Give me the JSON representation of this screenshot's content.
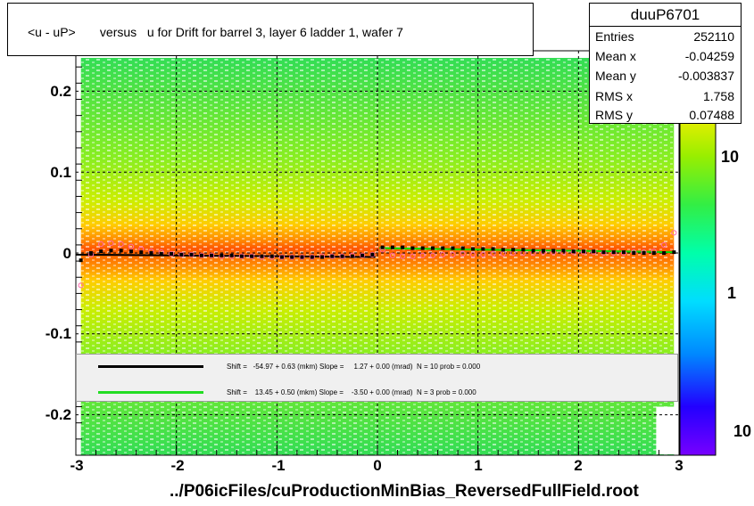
{
  "chart_data": {
    "type": "heatmap",
    "title": "<u - uP>       versus   u for Drift for barrel 3, layer 6 ladder 1, wafer 7",
    "xlabel": "../P06icFiles/cuProductionMinBias_ReversedFullField.root",
    "ylabel": "",
    "xlim": [
      -3,
      3
    ],
    "ylim": [
      -0.25,
      0.25
    ],
    "x_ticks": [
      "-3",
      "-2",
      "-1",
      "0",
      "1",
      "2",
      "3"
    ],
    "y_ticks": [
      "-0.2",
      "-0.1",
      "0",
      "0.1",
      "0.2"
    ],
    "z_ticks": [
      "10",
      "1",
      "10"
    ],
    "grid": true,
    "colors": {
      "frame": "#000000",
      "profile_black": "#000000",
      "profile_pink": "#ff66aa",
      "fit_green": "#00dd00",
      "legend_bg": "#f0f0f0"
    },
    "profile": {
      "x": [
        -2.95,
        -2.85,
        -2.75,
        -2.65,
        -2.55,
        -2.45,
        -2.35,
        -2.25,
        -2.15,
        -2.05,
        -1.95,
        -1.85,
        -1.75,
        -1.65,
        -1.55,
        -1.45,
        -1.35,
        -1.25,
        -1.15,
        -1.05,
        -0.95,
        -0.85,
        -0.75,
        -0.65,
        -0.55,
        -0.45,
        -0.35,
        -0.25,
        -0.15,
        -0.05,
        0.05,
        0.15,
        0.25,
        0.35,
        0.45,
        0.55,
        0.65,
        0.75,
        0.85,
        0.95,
        1.05,
        1.15,
        1.25,
        1.35,
        1.45,
        1.55,
        1.65,
        1.75,
        1.85,
        1.95,
        2.05,
        2.15,
        2.25,
        2.35,
        2.45,
        2.55,
        2.65,
        2.75,
        2.85,
        2.95
      ],
      "y": [
        -0.009,
        0.0,
        0.002,
        0.003,
        0.003,
        0.002,
        0.001,
        0.0,
        -0.001,
        -0.001,
        -0.002,
        -0.002,
        -0.003,
        -0.003,
        -0.003,
        -0.003,
        -0.004,
        -0.004,
        -0.004,
        -0.004,
        -0.005,
        -0.005,
        -0.005,
        -0.005,
        -0.005,
        -0.004,
        -0.004,
        -0.004,
        -0.003,
        -0.002,
        0.007,
        0.007,
        0.007,
        0.006,
        0.006,
        0.006,
        0.006,
        0.006,
        0.006,
        0.005,
        0.005,
        0.005,
        0.004,
        0.004,
        0.004,
        0.003,
        0.003,
        0.003,
        0.003,
        0.002,
        0.002,
        0.002,
        0.001,
        0.001,
        0.001,
        0.0,
        0.0,
        0.0,
        0.0,
        0.001
      ]
    },
    "profile_alt": {
      "x": [
        -2.95,
        -2.85,
        -2.75,
        -2.65,
        -2.55,
        -2.45,
        -2.35,
        -2.25,
        -2.15,
        -2.05,
        -1.95,
        -1.85,
        -1.75,
        -1.65,
        -1.55,
        -1.45,
        -1.35,
        -1.25,
        -1.15,
        -1.05,
        -0.95,
        -0.85,
        -0.75,
        -0.65,
        -0.55,
        -0.45,
        -0.35,
        -0.25,
        -0.15,
        -0.05,
        0.05,
        0.15,
        0.25,
        0.35,
        0.45,
        0.55,
        0.65,
        0.75,
        0.85,
        0.95,
        1.05,
        1.15,
        1.25,
        1.35,
        1.45,
        1.55,
        1.65,
        1.75,
        1.85,
        1.95,
        2.05,
        2.15,
        2.25,
        2.35,
        2.45,
        2.55,
        2.65,
        2.75,
        2.85,
        2.95
      ],
      "y": [
        -0.04,
        -0.002,
        0.011,
        0.012,
        0.011,
        0.008,
        0.005,
        0.002,
        0.001,
        -0.001,
        -0.002,
        -0.002,
        -0.003,
        -0.003,
        -0.004,
        -0.004,
        -0.004,
        -0.004,
        -0.005,
        -0.005,
        -0.005,
        -0.005,
        -0.005,
        -0.005,
        -0.004,
        -0.004,
        -0.004,
        -0.003,
        -0.003,
        -0.002,
        0.004,
        -0.003,
        -0.004,
        -0.004,
        -0.003,
        -0.003,
        -0.002,
        -0.002,
        -0.001,
        -0.002,
        -0.002,
        -0.001,
        -0.001,
        0.0,
        0.0,
        0.0,
        0.001,
        0.001,
        0.001,
        0.001,
        0.001,
        0.001,
        0.0,
        0.0,
        0.0,
        0.001,
        0.001,
        0.002,
        0.01,
        0.025
      ]
    },
    "fits": [
      {
        "x": [
          -3,
          -0.02
        ],
        "y": [
          -0.002,
          -0.005
        ]
      },
      {
        "x": [
          0.02,
          2.95
        ],
        "y": [
          0.006,
          0.001
        ]
      }
    ]
  },
  "stats": {
    "title": "duuP6701",
    "rows": [
      {
        "label": "Entries",
        "value": "252110"
      },
      {
        "label": "Mean x",
        "value": "-0.04259"
      },
      {
        "label": "Mean y",
        "value": "-0.003837"
      },
      {
        "label": "RMS x",
        "value": "1.758"
      },
      {
        "label": "RMS y",
        "value": "0.07488"
      }
    ]
  },
  "legend": {
    "entries": [
      {
        "text": "Shift =   -54.97 + 0.63 (mkm) Slope =     1.27 + 0.00 (mrad)  N = 10 prob = 0.000",
        "color": "#000000"
      },
      {
        "text": "Shift =    13.45 + 0.50 (mkm) Slope =    -3.50 + 0.00 (mrad)  N = 3 prob = 0.000",
        "color": "#22dd22"
      }
    ]
  }
}
